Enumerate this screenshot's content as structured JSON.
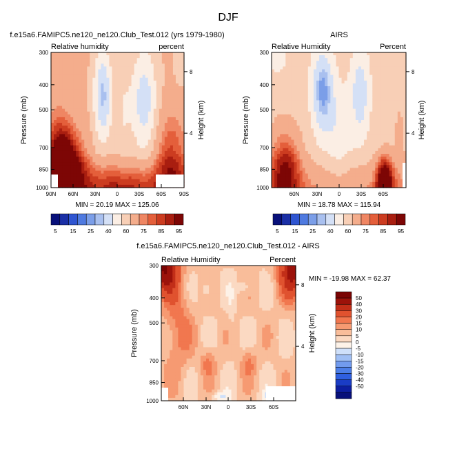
{
  "page": {
    "title": "DJF"
  },
  "colors": {
    "rh_palette": [
      "#08107a",
      "#1a2fa6",
      "#2f55d1",
      "#4f7ae0",
      "#7b9ee8",
      "#a9c0ef",
      "#d4e0f6",
      "#fbeee4",
      "#f8cfb6",
      "#f4ad8c",
      "#ef8663",
      "#e45f3b",
      "#cc3c20",
      "#a91e10",
      "#7d0605"
    ],
    "diff_palette": [
      "#08107a",
      "#0d1ea0",
      "#1a3cc5",
      "#2f5fe0",
      "#4c7ee8",
      "#729bee",
      "#a0bff4",
      "#cfe0fa",
      "#fdf2e8",
      "#fbd9c2",
      "#f9bd9a",
      "#f69a72",
      "#f1774f",
      "#e0522f",
      "#c22e18",
      "#9c120a",
      "#7a0403"
    ]
  },
  "chart_data": [
    {
      "id": "model",
      "type": "heatmap",
      "title": "f.e15a6.FAMIPC5.ne120_ne120.Club_Test.012 (yrs 1979-1980)",
      "left_label": "Relative humidity",
      "right_label": "percent",
      "xlabel": "",
      "ylabel": "Pressure (mb)",
      "y2label": "Height (km)",
      "x_ticks": [
        "90N",
        "60N",
        "30N",
        "0",
        "30S",
        "60S",
        "90S"
      ],
      "y_ticks": [
        "300",
        "400",
        "500",
        "700",
        "850",
        "1000"
      ],
      "y2_ticks": [
        "8",
        "4"
      ],
      "ylim": [
        1000,
        300
      ],
      "stats": "MIN = 20.19  MAX = 125.06",
      "min": 20.19,
      "max": 125.06,
      "colorbar_labels": [
        "5",
        "15",
        "25",
        "40",
        "60",
        "75",
        "85",
        "95"
      ],
      "x_values": [
        -90,
        -60,
        -30,
        0,
        30,
        60,
        90
      ]
    },
    {
      "id": "obs",
      "type": "heatmap",
      "title": "AIRS",
      "left_label": "Relative Humidity",
      "right_label": "Percent",
      "ylabel": "Pressure (mb)",
      "y2label": "Height (km)",
      "x_ticks": [
        "60N",
        "30N",
        "0",
        "30S",
        "60S"
      ],
      "y_ticks": [
        "300",
        "400",
        "500",
        "700",
        "850",
        "1000"
      ],
      "y2_ticks": [
        "8",
        "4"
      ],
      "ylim": [
        1000,
        300
      ],
      "stats": "MIN = 18.78  MAX = 115.94",
      "min": 18.78,
      "max": 115.94,
      "colorbar_labels": [
        "5",
        "15",
        "25",
        "40",
        "60",
        "75",
        "85",
        "95"
      ]
    },
    {
      "id": "diff",
      "type": "heatmap",
      "title": "f.e15a6.FAMIPC5.ne120_ne120.Club_Test.012 - AIRS",
      "left_label": "Relative Humidity",
      "right_label": "Percent",
      "ylabel": "Pressure (mb)",
      "y2label": "Height (km)",
      "x_ticks": [
        "60N",
        "30N",
        "0",
        "30S",
        "60S"
      ],
      "y_ticks": [
        "300",
        "400",
        "500",
        "700",
        "850",
        "1000"
      ],
      "y2_ticks": [
        "8",
        "4"
      ],
      "ylim": [
        1000,
        300
      ],
      "stats": "MIN = -19.98  MAX =  62.37",
      "min": -19.98,
      "max": 62.37,
      "colorbar_labels": [
        "50",
        "40",
        "30",
        "20",
        "15",
        "10",
        "5",
        "0",
        "-5",
        "-10",
        "-15",
        "-20",
        "-30",
        "-40",
        "-50"
      ]
    }
  ]
}
